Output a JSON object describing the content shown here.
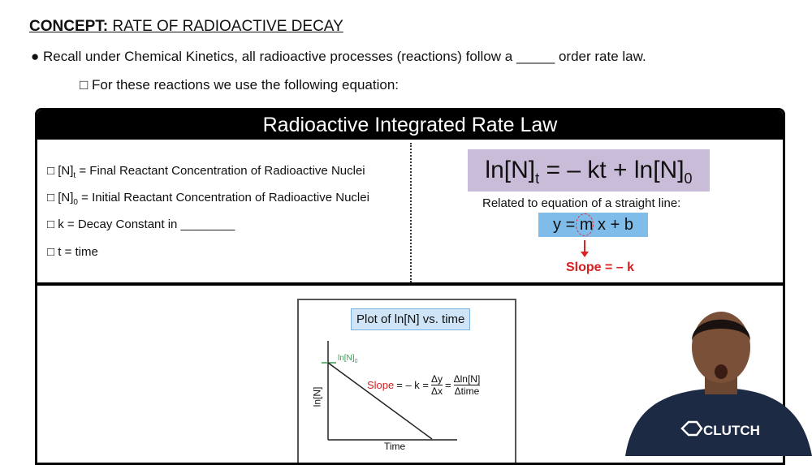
{
  "heading": {
    "bold": "CONCEPT:",
    "rest": " RATE OF RADIOACTIVE DECAY"
  },
  "recall": "● Recall under Chemical Kinetics, all radioactive processes (reactions) follow a _____ order rate law.",
  "for_these": "□ For these reactions we use the following equation:",
  "panel_title": "Radioactive Integrated Rate Law",
  "definitions": [
    {
      "sym": "□ [N]",
      "sub": "t",
      "text": " = Final Reactant Concentration of Radioactive Nuclei"
    },
    {
      "sym": "□ [N]",
      "sub": "0",
      "text": " = Initial Reactant Concentration of Radioactive Nuclei"
    },
    {
      "sym": "□ k",
      "sub": "",
      "text": " = Decay Constant in ________"
    },
    {
      "sym": "□ t",
      "sub": "",
      "text": " = time"
    }
  ],
  "equation": {
    "a": "ln[N]",
    "a_sub": "t",
    "b": " = – kt + ln[N]",
    "b_sub": "0"
  },
  "related": "Related to equation of a straight line:",
  "line_eq": "y = m x + b",
  "slope_label": "Slope = – k",
  "plot": {
    "title": "Plot of ln[N] vs. time",
    "ylabel": "ln[N]",
    "xlabel": "Time",
    "intercept": "ln[N]",
    "intercept_sub": "0",
    "slope_word": "Slope",
    "slope_eq": "= – k =",
    "dy": "Δy",
    "dx": "Δx",
    "eq2": "=",
    "dlnN": "Δln[N]",
    "dtime": "Δtime"
  },
  "logo": "CLUTCH",
  "colors": {
    "red": "#d81e1e",
    "purple": "#c9bcd8",
    "blue": "#7fbcea",
    "green": "#3a9a55"
  }
}
